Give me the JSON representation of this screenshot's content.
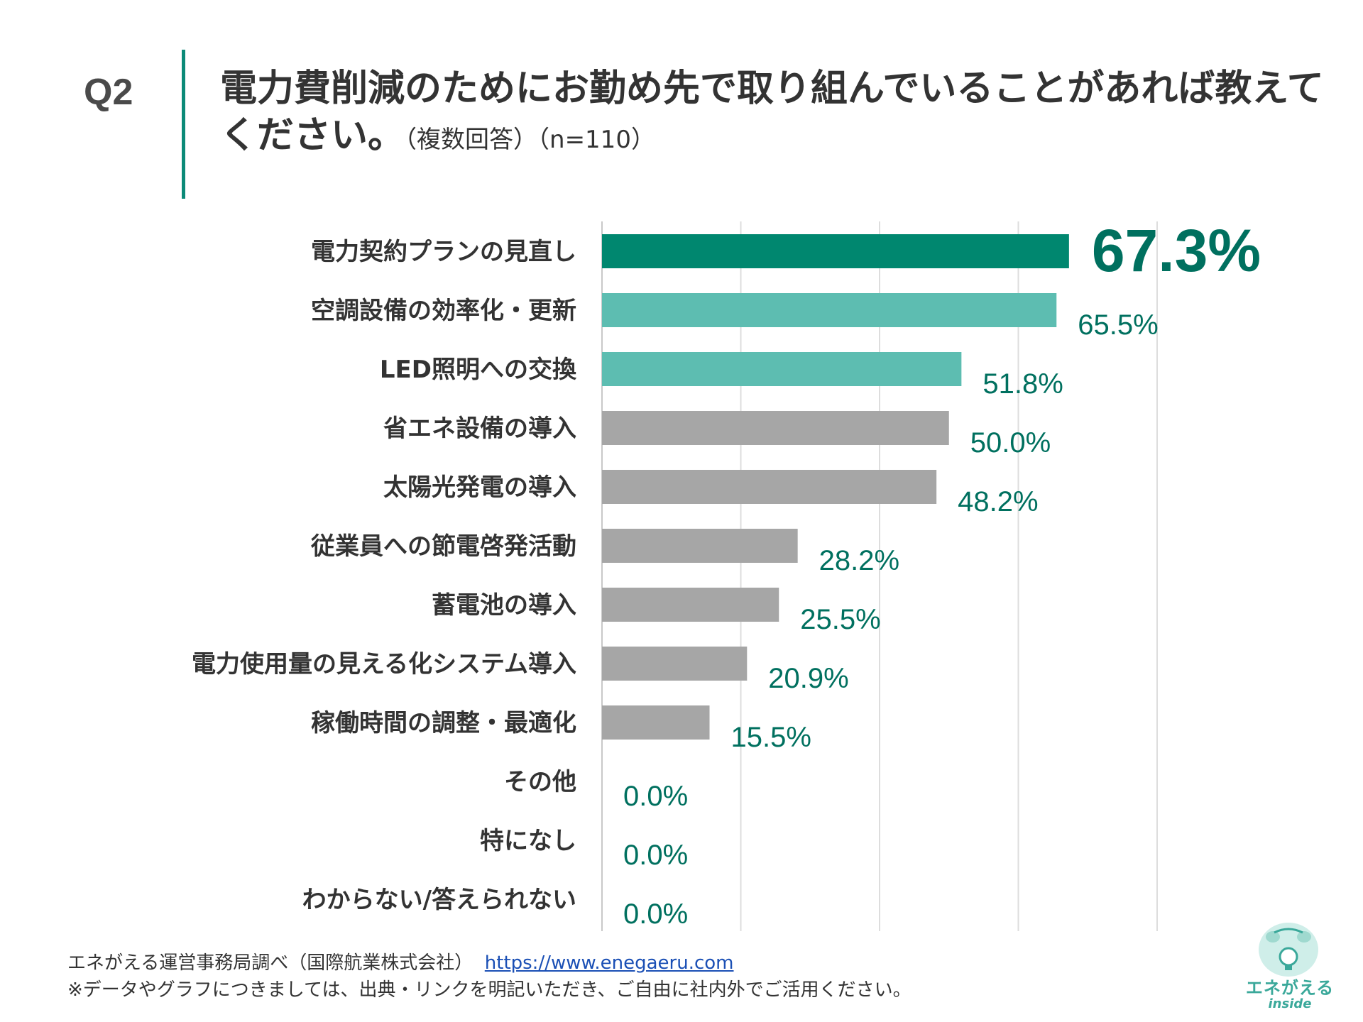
{
  "header": {
    "q_label": "Q2",
    "title": "電力費削減のためにお勤め先で取り組んでいることがあれば教えてください。",
    "subtitle": "（複数回答）（n=110）"
  },
  "chart_data": {
    "type": "bar",
    "orientation": "horizontal",
    "categories": [
      "電力契約プランの見直し",
      "空調設備の効率化・更新",
      "LED照明への交換",
      "省エネ設備の導入",
      "太陽光発電の導入",
      "従業員への節電啓発活動",
      "蓄電池の導入",
      "電力使用量の見える化システム導入",
      "稼働時間の調整・最適化",
      "その他",
      "特になし",
      "わからない/答えられない"
    ],
    "values": [
      67.3,
      65.5,
      51.8,
      50.0,
      48.2,
      28.2,
      25.5,
      20.9,
      15.5,
      0.0,
      0.0,
      0.0
    ],
    "value_labels": [
      "67.3%",
      "65.5%",
      "51.8%",
      "50.0%",
      "48.2%",
      "28.2%",
      "25.5%",
      "20.9%",
      "15.5%",
      "0.0%",
      "0.0%",
      "0.0%"
    ],
    "bar_colors": [
      "#00876f",
      "#5dbdb1",
      "#5dbdb1",
      "#a6a6a6",
      "#a6a6a6",
      "#a6a6a6",
      "#a6a6a6",
      "#a6a6a6",
      "#a6a6a6",
      "#a6a6a6",
      "#a6a6a6",
      "#a6a6a6"
    ],
    "label_color": "#00705f",
    "xlim": [
      0,
      80
    ],
    "grid_step": 20,
    "grid": true
  },
  "footer": {
    "source": "エネがえる運営事務局調べ（国際航業株式会社）",
    "url": "https://www.enegaeru.com",
    "note": "※データやグラフにつきましては、出典・リンクを明記いただき、ご自由に社内外でご活用ください。"
  },
  "logo": {
    "name": "エネがえる",
    "sub": "inside",
    "color": "#3aa89a"
  }
}
